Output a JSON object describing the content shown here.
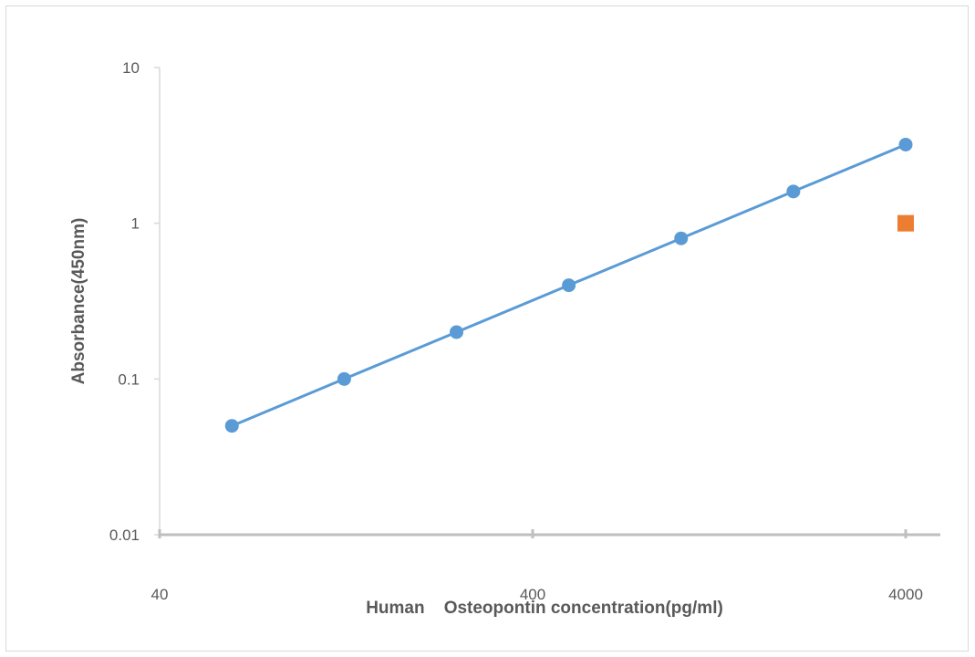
{
  "chart_data": {
    "type": "scatter",
    "title": "",
    "xlabel": "Human    Osteopontin concentration(pg/ml)",
    "ylabel": "Absorbance(450nm)",
    "x_scale": "log",
    "y_scale": "log",
    "xlim": [
      40,
      4000
    ],
    "ylim": [
      0.01,
      10
    ],
    "x_ticks": [
      "40",
      "400",
      "4000"
    ],
    "y_ticks": [
      "0.01",
      "0.1",
      "1",
      "10"
    ],
    "grid": false,
    "legend": "none",
    "series": [
      {
        "color": "#5b9bd5",
        "marker": "circle",
        "line": true,
        "x": [
          62.5,
          125,
          250,
          500,
          1000,
          2000,
          4000
        ],
        "y": [
          0.05,
          0.1,
          0.2,
          0.4,
          0.8,
          1.6,
          3.2
        ]
      },
      {
        "color": "#ed7d31",
        "marker": "square",
        "line": false,
        "x": [
          4000
        ],
        "y": [
          1
        ]
      }
    ]
  }
}
